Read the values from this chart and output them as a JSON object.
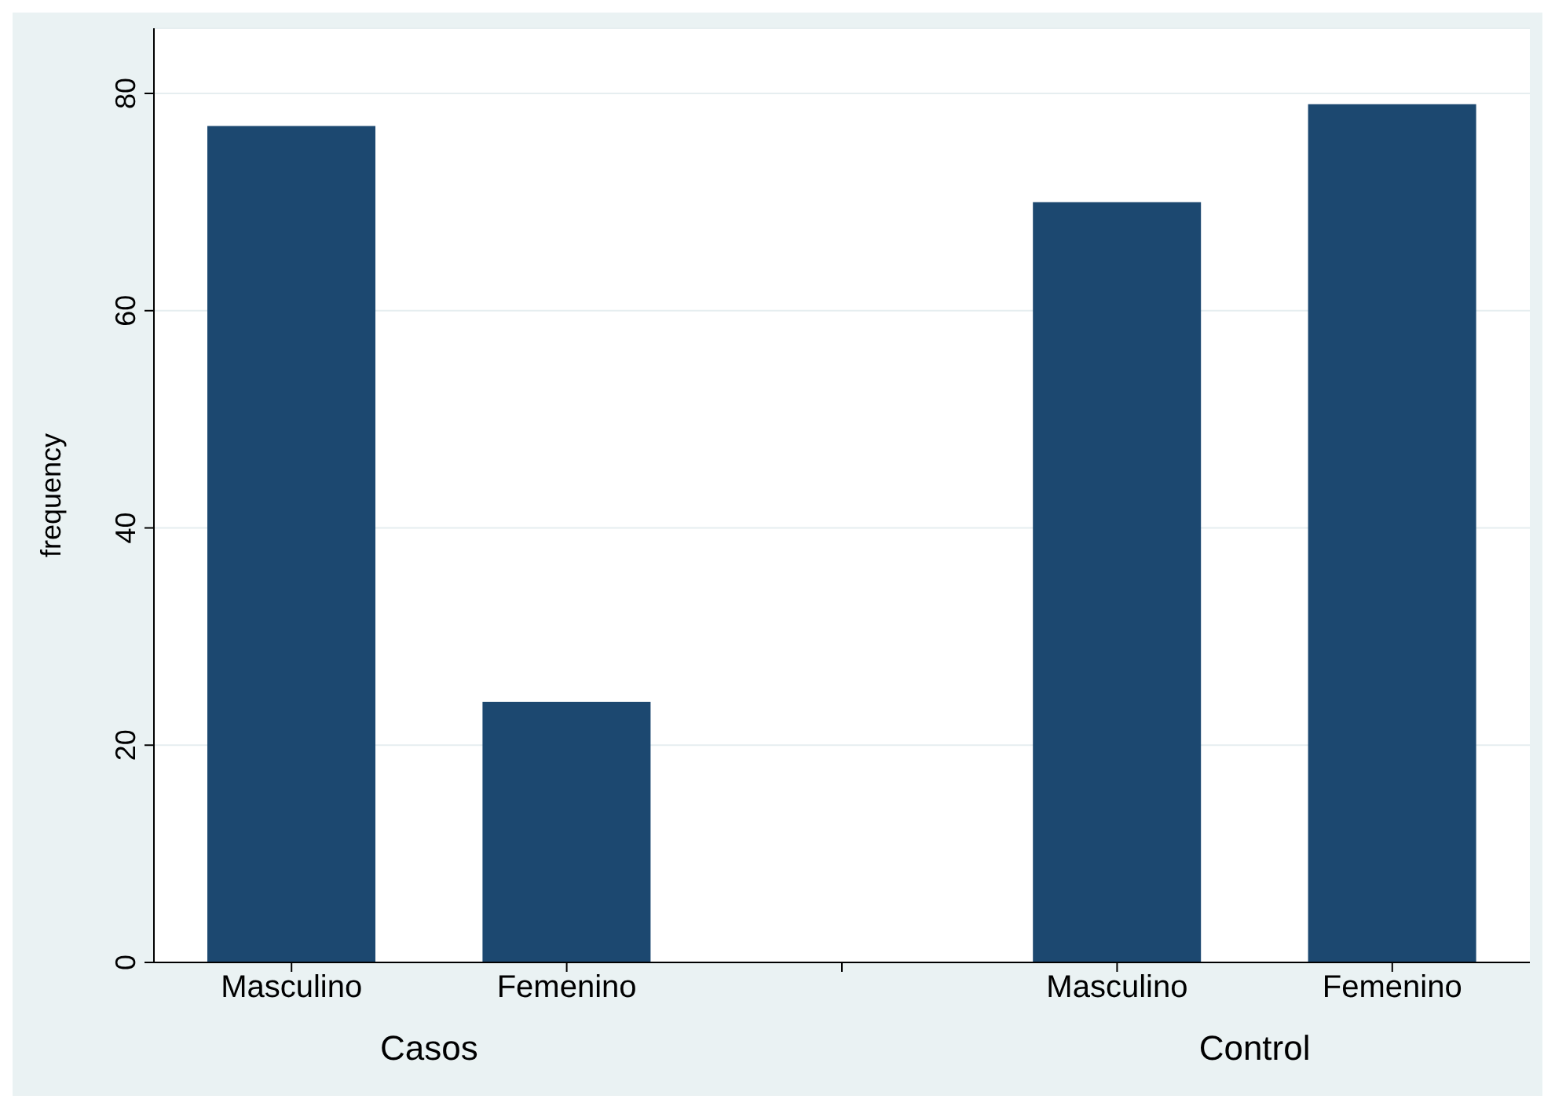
{
  "chart_data": {
    "type": "bar",
    "ylabel": "frequency",
    "categories": [
      "Masculino",
      "Femenino",
      null,
      "Masculino",
      "Femenino"
    ],
    "series": [
      {
        "color": "#1c4870",
        "values": [
          77,
          24,
          null,
          70,
          79
        ]
      }
    ],
    "annotations": [
      "Casos",
      "Control"
    ],
    "ylim": [
      0,
      86
    ],
    "yticks": [
      0,
      20,
      40,
      60,
      80
    ],
    "grid": "y",
    "legend": false
  }
}
